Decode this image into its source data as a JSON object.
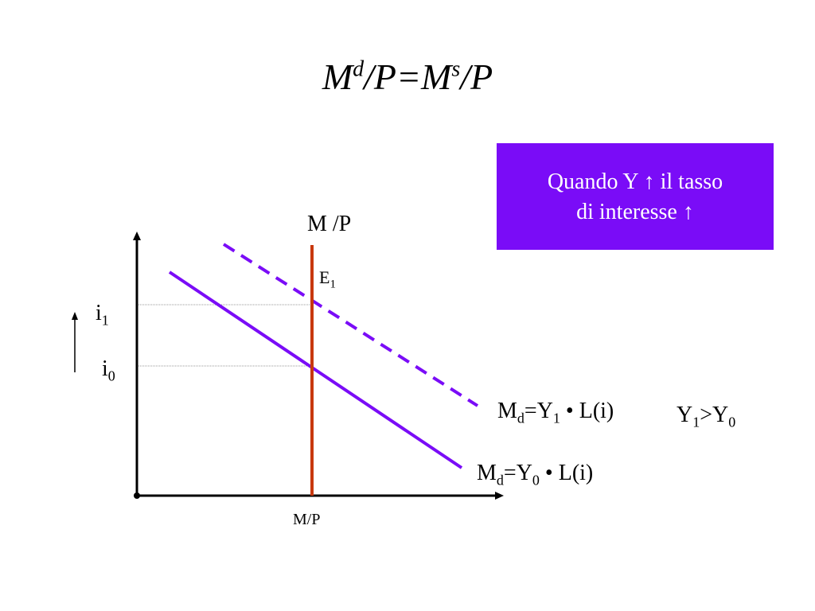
{
  "title": {
    "base1": "M",
    "sup1": "d",
    "mid": "/P=M",
    "sup2": "s",
    "end": "/P"
  },
  "callout": {
    "line1": "Quando Y ↑ il tasso",
    "line2": "di interesse ↑"
  },
  "labels": {
    "supply_top": "M /P",
    "x_axis": "M/P",
    "equilibrium": {
      "base": "E",
      "sub": "1"
    },
    "i1": {
      "base": "i",
      "sub": "1"
    },
    "i0": {
      "base": "i",
      "sub": "0"
    },
    "md1": {
      "m": "M",
      "msub": "d",
      "eq": "=Y",
      "ysub": "1",
      "rest": " • L(i)"
    },
    "md0": {
      "m": "M",
      "msub": "d",
      "eq": "=Y",
      "ysub": "0",
      "rest": " • L(i)"
    },
    "inequality": {
      "y1": "Y",
      "y1sub": "1",
      "gt": ">Y",
      "y0sub": "0"
    }
  },
  "colors": {
    "demand": "#7a0cf7",
    "supply": "#c8380e",
    "callout_bg": "#7a0cf7",
    "axis": "#000000",
    "guide": "#999999"
  },
  "icons": [
    "up-arrow-icon"
  ]
}
